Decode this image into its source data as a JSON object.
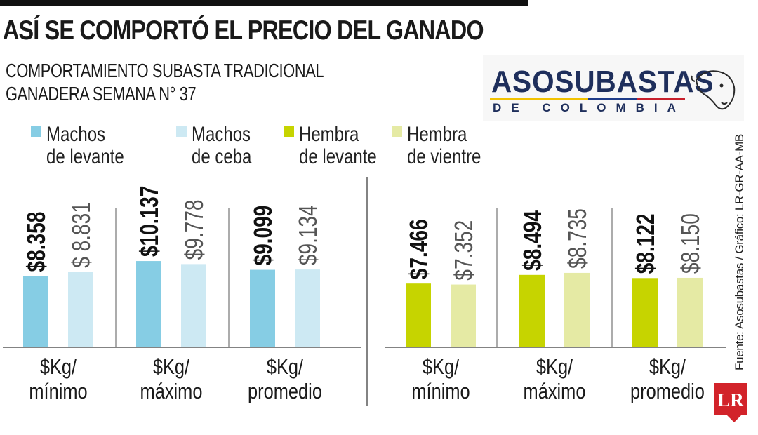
{
  "header": {
    "title": "ASÍ SE COMPORTÓ EL PRECIO DEL GANADO",
    "subtitle_line1": "COMPORTAMIENTO SUBASTA TRADICIONAL",
    "subtitle_line2": "GANADERA SEMANA N° 37"
  },
  "logo": {
    "word": "ASOSUBASTAS",
    "sub": "DE COLOMBIA"
  },
  "source": "Fuente: Asosubastas / Gráfico: LR-GR-AA-MB",
  "badge": "LR",
  "colors": {
    "machos_levante": "#86cde4",
    "machos_ceba": "#cde9f3",
    "hembra_levante": "#c6d400",
    "hembra_vientre": "#e5eaa4",
    "axis": "#5a5a5a"
  },
  "chart_data": {
    "type": "bar",
    "legend": [
      {
        "line1": "Machos",
        "line2": "de levante",
        "color": "#86cde4"
      },
      {
        "line1": "Machos",
        "line2": "de ceba",
        "color": "#cde9f3"
      },
      {
        "line1": "Hembra",
        "line2": "de levante",
        "color": "#c6d400"
      },
      {
        "line1": "Hembra",
        "line2": "de vientre",
        "color": "#e5eaa4"
      }
    ],
    "panels": [
      {
        "categories": [
          {
            "line1": "$Kg/",
            "line2": "mínimo"
          },
          {
            "line1": "$Kg/",
            "line2": "máximo"
          },
          {
            "line1": "$Kg/",
            "line2": "promedio"
          }
        ],
        "series": [
          {
            "name": "Machos de levante",
            "color": "#86cde4",
            "values": [
              8358,
              10137,
              9099
            ],
            "labels": [
              "$8.358",
              "$10.137",
              "$9.099"
            ],
            "bold": true
          },
          {
            "name": "Machos de ceba",
            "color": "#cde9f3",
            "values": [
              8831,
              9778,
              9134
            ],
            "labels": [
              "$ 8.831",
              "$9.778",
              "$9.134"
            ],
            "bold": false
          }
        ]
      },
      {
        "categories": [
          {
            "line1": "$Kg/",
            "line2": "mínimo"
          },
          {
            "line1": "$Kg/",
            "line2": "máximo"
          },
          {
            "line1": "$Kg/",
            "line2": "promedio"
          }
        ],
        "series": [
          {
            "name": "Hembra de levante",
            "color": "#c6d400",
            "values": [
              7466,
              8494,
              8122
            ],
            "labels": [
              "$7.466",
              "$8.494",
              "$8.122"
            ],
            "bold": true
          },
          {
            "name": "Hembra de vientre",
            "color": "#e5eaa4",
            "values": [
              7352,
              8735,
              8150
            ],
            "labels": [
              "$7.352",
              "$8.735",
              "$8.150"
            ],
            "bold": false
          }
        ]
      }
    ]
  }
}
